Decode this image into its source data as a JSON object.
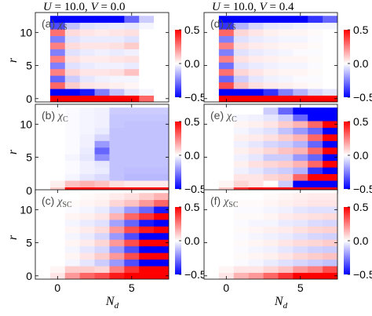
{
  "chart_data": {
    "type": "heatmap",
    "column_titles": [
      {
        "parts": [
          [
            "U",
            true
          ],
          [
            " = 10.0, ",
            false
          ],
          [
            "V",
            true
          ],
          [
            " = 0.0",
            false
          ]
        ]
      },
      {
        "parts": [
          [
            "U",
            true
          ],
          [
            " = 10.0, ",
            false
          ],
          [
            "V",
            true
          ],
          [
            " = 0.4",
            false
          ]
        ]
      }
    ],
    "xlabel": {
      "main": "N",
      "sub": "d"
    },
    "ylabel": "r",
    "x_ticks": [
      "0",
      "5"
    ],
    "y_ticks": [
      "0",
      "5",
      "10"
    ],
    "x_tick_values": [
      0,
      5
    ],
    "y_tick_values": [
      0,
      5,
      10
    ],
    "xlim": [
      -1.5,
      7.5
    ],
    "ylim": [
      -0.5,
      13
    ],
    "colorbar": {
      "ticks": [
        "0.5",
        "0.0",
        "−0.5"
      ],
      "tick_values": [
        0.5,
        0.0,
        -0.5
      ],
      "range": [
        -0.5,
        0.5
      ],
      "colors": {
        "low": "#0000ff",
        "mid": "#ffffff",
        "high": "#ff0000"
      }
    },
    "grid": false,
    "panels": [
      {
        "id": "a",
        "label": "(a)",
        "chi": "S",
        "V": 0.0,
        "row": 0,
        "col": 0,
        "Nd": [
          0,
          1,
          2,
          3,
          4,
          5,
          6,
          7
        ],
        "r": [
          0,
          1,
          2,
          3,
          4,
          5,
          6,
          7,
          8,
          9,
          10,
          11,
          12
        ],
        "values": [
          [
            0.95,
            0.95,
            0.9,
            0.85,
            0.75,
            0.5,
            0.3,
            0.0
          ],
          [
            -0.95,
            -0.6,
            -0.45,
            -0.25,
            -0.12,
            -0.05,
            -0.02,
            0.0
          ],
          [
            0.3,
            0.1,
            0.05,
            0.04,
            0.03,
            0.02,
            0.0,
            0.0
          ],
          [
            -0.3,
            -0.1,
            -0.05,
            -0.03,
            -0.02,
            -0.02,
            0.0,
            0.0
          ],
          [
            0.25,
            0.08,
            0.05,
            0.05,
            0.06,
            0.12,
            0.0,
            0.0
          ],
          [
            -0.25,
            -0.06,
            -0.04,
            -0.03,
            -0.03,
            -0.04,
            0.0,
            0.0
          ],
          [
            0.25,
            0.06,
            0.04,
            0.04,
            0.05,
            0.06,
            0.0,
            0.0
          ],
          [
            -0.25,
            -0.06,
            -0.04,
            -0.03,
            -0.04,
            -0.03,
            0.0,
            0.0
          ],
          [
            0.25,
            0.07,
            0.05,
            0.05,
            0.06,
            0.1,
            0.0,
            0.0
          ],
          [
            -0.25,
            -0.06,
            -0.04,
            -0.04,
            -0.04,
            -0.06,
            0.0,
            0.0
          ],
          [
            0.28,
            0.07,
            0.05,
            0.04,
            0.05,
            0.06,
            0.0,
            0.0
          ],
          [
            -0.35,
            -0.12,
            -0.06,
            -0.05,
            -0.04,
            -0.05,
            -0.02,
            0.0
          ],
          [
            -0.95,
            -0.95,
            -0.9,
            -0.85,
            -0.5,
            -0.3,
            -0.1,
            0.0
          ]
        ]
      },
      {
        "id": "d",
        "label": "(d)",
        "chi": "S",
        "V": 0.4,
        "row": 0,
        "col": 1,
        "Nd": [
          0,
          1,
          2,
          3,
          4,
          5,
          6,
          7
        ],
        "r": [
          0,
          1,
          2,
          3,
          4,
          5,
          6,
          7,
          8,
          9,
          10,
          11,
          12
        ],
        "values": [
          [
            0.95,
            0.95,
            0.95,
            0.95,
            0.95,
            0.95,
            0.95,
            0.95
          ],
          [
            -0.95,
            -0.95,
            -0.7,
            -0.4,
            -0.25,
            -0.15,
            -0.08,
            -0.05
          ],
          [
            0.35,
            0.12,
            0.06,
            0.04,
            0.03,
            0.02,
            0.01,
            0.0
          ],
          [
            -0.3,
            -0.1,
            -0.05,
            -0.03,
            -0.02,
            -0.01,
            -0.01,
            0.0
          ],
          [
            0.28,
            0.08,
            0.05,
            0.03,
            0.02,
            0.02,
            0.01,
            0.0
          ],
          [
            -0.28,
            -0.06,
            -0.04,
            -0.03,
            -0.02,
            -0.02,
            -0.01,
            0.0
          ],
          [
            0.25,
            0.06,
            0.04,
            0.03,
            0.02,
            0.02,
            0.01,
            0.0
          ],
          [
            -0.25,
            -0.06,
            -0.04,
            -0.03,
            -0.02,
            -0.01,
            -0.01,
            0.0
          ],
          [
            0.25,
            0.06,
            0.04,
            0.03,
            0.02,
            0.02,
            0.01,
            0.0
          ],
          [
            -0.25,
            -0.06,
            -0.04,
            -0.03,
            -0.02,
            -0.02,
            -0.01,
            0.0
          ],
          [
            0.3,
            0.08,
            0.05,
            0.03,
            0.02,
            0.02,
            0.01,
            0.0
          ],
          [
            -0.4,
            -0.15,
            -0.08,
            -0.05,
            -0.04,
            -0.03,
            -0.02,
            -0.02
          ],
          [
            -0.95,
            -0.95,
            -0.95,
            -0.9,
            -0.85,
            -0.6,
            -0.4,
            -0.3
          ]
        ]
      },
      {
        "id": "b",
        "label": "(b)",
        "chi": "C",
        "V": 0.0,
        "row": 1,
        "col": 0,
        "Nd": [
          0,
          1,
          2,
          3,
          4,
          5,
          6,
          7
        ],
        "r": [
          0,
          1,
          2,
          3,
          4,
          5,
          6,
          7,
          8,
          9,
          10,
          11,
          12
        ],
        "values": [
          [
            0.1,
            0.6,
            0.7,
            0.7,
            0.75,
            0.85,
            0.9,
            0.95
          ],
          [
            0.03,
            0.12,
            0.15,
            0.12,
            0.06,
            0.04,
            0.04,
            0.04
          ],
          [
            0.0,
            -0.02,
            -0.05,
            -0.07,
            -0.12,
            -0.14,
            -0.14,
            -0.14
          ],
          [
            0.0,
            -0.01,
            -0.03,
            -0.04,
            -0.12,
            -0.13,
            -0.13,
            -0.13
          ],
          [
            0.0,
            -0.01,
            -0.03,
            -0.05,
            -0.12,
            -0.12,
            -0.12,
            -0.12
          ],
          [
            0.0,
            -0.02,
            -0.05,
            -0.22,
            -0.12,
            -0.12,
            -0.12,
            -0.12
          ],
          [
            0.0,
            -0.01,
            -0.04,
            -0.3,
            -0.12,
            -0.12,
            -0.12,
            -0.12
          ],
          [
            0.0,
            -0.01,
            -0.03,
            -0.2,
            -0.12,
            -0.12,
            -0.12,
            -0.12
          ],
          [
            0.0,
            -0.01,
            -0.03,
            -0.08,
            -0.12,
            -0.12,
            -0.12,
            -0.12
          ],
          [
            0.0,
            -0.01,
            -0.02,
            -0.04,
            -0.12,
            -0.12,
            -0.12,
            -0.12
          ],
          [
            0.0,
            -0.01,
            -0.02,
            -0.03,
            -0.11,
            -0.12,
            -0.12,
            -0.12
          ],
          [
            0.0,
            -0.01,
            -0.02,
            -0.03,
            -0.11,
            -0.11,
            -0.11,
            -0.11
          ],
          [
            0.0,
            -0.01,
            -0.02,
            -0.03,
            -0.1,
            -0.1,
            -0.1,
            -0.1
          ]
        ]
      },
      {
        "id": "e",
        "label": "(e)",
        "chi": "C",
        "V": 0.4,
        "row": 1,
        "col": 1,
        "Nd": [
          0,
          1,
          2,
          3,
          4,
          5,
          6,
          7
        ],
        "r": [
          0,
          1,
          2,
          3,
          4,
          5,
          6,
          7,
          8,
          9,
          10,
          11,
          12
        ],
        "values": [
          [
            0.1,
            0.4,
            0.6,
            0.8,
            0.9,
            0.95,
            0.95,
            0.95
          ],
          [
            0.02,
            0.08,
            0.05,
            0.0,
            -0.1,
            -0.5,
            -0.9,
            -0.95
          ],
          [
            0.0,
            0.05,
            0.05,
            0.08,
            0.1,
            0.3,
            0.5,
            0.95
          ],
          [
            0.0,
            -0.03,
            -0.05,
            -0.08,
            -0.1,
            -0.15,
            -0.4,
            -0.95
          ],
          [
            0.0,
            0.03,
            0.06,
            0.08,
            0.1,
            0.15,
            0.3,
            0.95
          ],
          [
            0.0,
            -0.03,
            -0.05,
            -0.1,
            -0.1,
            -0.2,
            -0.3,
            -0.95
          ],
          [
            0.0,
            0.03,
            0.05,
            0.08,
            0.12,
            0.15,
            0.3,
            0.95
          ],
          [
            0.0,
            -0.03,
            -0.05,
            -0.08,
            -0.1,
            -0.15,
            -0.3,
            -0.95
          ],
          [
            0.0,
            0.03,
            0.04,
            0.06,
            0.1,
            0.15,
            0.3,
            0.95
          ],
          [
            0.0,
            -0.02,
            -0.04,
            -0.06,
            -0.12,
            -0.2,
            -0.3,
            -0.95
          ],
          [
            0.0,
            0.02,
            0.03,
            0.05,
            0.1,
            0.15,
            0.3,
            0.95
          ],
          [
            0.0,
            -0.02,
            -0.03,
            -0.05,
            -0.1,
            -0.3,
            -0.7,
            -0.95
          ],
          [
            0.0,
            0.0,
            0.0,
            -0.1,
            -0.3,
            -0.5,
            -0.95,
            -0.95
          ]
        ]
      },
      {
        "id": "c",
        "label": "(c)",
        "chi": "SC",
        "V": 0.0,
        "row": 2,
        "col": 0,
        "Nd": [
          0,
          1,
          2,
          3,
          4,
          5,
          6,
          7
        ],
        "r": [
          0,
          1,
          2,
          3,
          4,
          5,
          6,
          7,
          8,
          9,
          10,
          11,
          12
        ],
        "values": [
          [
            0.05,
            0.2,
            0.3,
            0.35,
            0.45,
            0.55,
            0.7,
            0.9
          ],
          [
            0.02,
            0.1,
            0.1,
            0.08,
            0.25,
            0.4,
            0.5,
            0.7
          ],
          [
            0.0,
            -0.02,
            -0.05,
            -0.1,
            -0.2,
            -0.35,
            -0.5,
            -0.7
          ],
          [
            0.0,
            0.02,
            0.05,
            0.1,
            0.2,
            0.35,
            0.5,
            0.7
          ],
          [
            0.0,
            -0.02,
            -0.05,
            -0.08,
            -0.2,
            -0.35,
            -0.5,
            -0.7
          ],
          [
            0.0,
            0.02,
            0.04,
            0.08,
            0.2,
            0.35,
            0.5,
            0.7
          ],
          [
            0.0,
            -0.02,
            -0.04,
            -0.08,
            -0.2,
            -0.35,
            -0.5,
            -0.7
          ],
          [
            0.0,
            0.02,
            0.04,
            0.07,
            0.2,
            0.35,
            0.45,
            0.65
          ],
          [
            0.0,
            -0.02,
            -0.04,
            -0.06,
            -0.18,
            -0.3,
            -0.45,
            -0.65
          ],
          [
            0.0,
            0.02,
            0.03,
            0.05,
            0.15,
            0.3,
            0.4,
            0.6
          ],
          [
            0.0,
            -0.01,
            -0.02,
            -0.04,
            -0.1,
            -0.2,
            -0.3,
            -0.45
          ],
          [
            0.0,
            0.01,
            0.02,
            0.03,
            0.08,
            0.12,
            0.2,
            0.3
          ],
          [
            0.0,
            0.0,
            0.01,
            0.02,
            0.04,
            0.06,
            0.1,
            0.15
          ]
        ]
      },
      {
        "id": "f",
        "label": "(f)",
        "chi": "SC",
        "V": 0.4,
        "row": 2,
        "col": 1,
        "Nd": [
          0,
          1,
          2,
          3,
          4,
          5,
          6,
          7
        ],
        "r": [
          0,
          1,
          2,
          3,
          4,
          5,
          6,
          7,
          8,
          9,
          10,
          11,
          12
        ],
        "values": [
          [
            0.05,
            0.15,
            0.2,
            0.3,
            0.4,
            0.5,
            0.6,
            0.75
          ],
          [
            0.02,
            0.05,
            0.05,
            0.08,
            0.12,
            0.2,
            0.25,
            0.35
          ],
          [
            0.0,
            -0.01,
            -0.02,
            -0.04,
            -0.06,
            -0.08,
            -0.1,
            -0.12
          ],
          [
            0.0,
            0.01,
            0.02,
            0.03,
            0.05,
            0.08,
            0.1,
            0.12
          ],
          [
            0.0,
            -0.01,
            -0.02,
            -0.03,
            -0.05,
            -0.07,
            -0.09,
            -0.1
          ],
          [
            0.0,
            0.01,
            0.02,
            0.03,
            0.05,
            0.07,
            0.08,
            0.1
          ],
          [
            0.0,
            -0.01,
            -0.02,
            -0.03,
            -0.04,
            -0.06,
            -0.08,
            -0.09
          ],
          [
            0.0,
            0.01,
            0.02,
            0.03,
            0.04,
            0.06,
            0.08,
            0.09
          ],
          [
            0.0,
            -0.01,
            -0.02,
            -0.02,
            -0.04,
            -0.05,
            -0.07,
            -0.08
          ],
          [
            0.0,
            0.01,
            0.01,
            0.02,
            0.04,
            0.05,
            0.06,
            0.07
          ],
          [
            0.0,
            -0.01,
            -0.01,
            -0.02,
            -0.03,
            -0.05,
            -0.06,
            -0.06
          ],
          [
            0.0,
            0.01,
            0.01,
            0.02,
            0.03,
            0.04,
            0.05,
            0.05
          ],
          [
            0.0,
            0.0,
            0.0,
            0.01,
            0.02,
            0.03,
            0.04,
            0.04
          ]
        ]
      }
    ]
  }
}
